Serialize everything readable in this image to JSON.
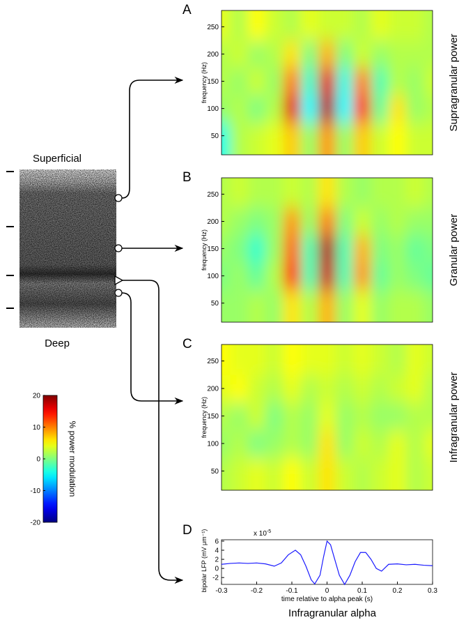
{
  "figure": {
    "superficial": "Superficial",
    "deep": "Deep",
    "bottom_label": "Infragranular alpha"
  },
  "colorbar": {
    "label": "% power modulation",
    "colormap": "jet",
    "clim": [
      -20,
      20
    ],
    "ticks": [
      20,
      10,
      0,
      -10,
      -20
    ]
  },
  "chart_data": [
    {
      "type": "heatmap",
      "panel": "A",
      "side_title": "Supragranular power",
      "ylabel": "frequency (Hz)",
      "x": [
        -0.3,
        -0.25,
        -0.2,
        -0.15,
        -0.1,
        -0.05,
        0,
        0.05,
        0.1,
        0.15,
        0.2,
        0.25,
        0.3
      ],
      "y": [
        50,
        100,
        150,
        200,
        250
      ],
      "xlim": [
        -0.3,
        0.3
      ],
      "ylim": [
        15,
        280
      ],
      "yticks": [
        50,
        100,
        150,
        200,
        250
      ],
      "z": [
        [
          -4,
          2,
          3,
          4,
          7,
          1,
          9,
          1,
          7,
          3,
          5,
          3,
          3
        ],
        [
          1,
          2,
          0,
          2,
          16,
          -5,
          18,
          -5,
          14,
          -1,
          6,
          1,
          2
        ],
        [
          2,
          1,
          3,
          1,
          10,
          -3,
          16,
          -4,
          10,
          -2,
          2,
          1,
          3
        ],
        [
          2,
          3,
          1,
          2,
          6,
          0,
          8,
          0,
          3,
          1,
          2,
          2,
          2
        ],
        [
          4,
          2,
          5,
          3,
          2,
          4,
          3,
          3,
          2,
          4,
          3,
          3,
          2
        ]
      ]
    },
    {
      "type": "heatmap",
      "panel": "B",
      "side_title": "Granular power",
      "ylabel": "frequency (Hz)",
      "x": [
        -0.3,
        -0.25,
        -0.2,
        -0.15,
        -0.1,
        -0.05,
        0,
        0.05,
        0.1,
        0.15,
        0.2,
        0.25,
        0.3
      ],
      "y": [
        50,
        100,
        150,
        200,
        250
      ],
      "xlim": [
        -0.3,
        0.3
      ],
      "ylim": [
        15,
        280
      ],
      "yticks": [
        50,
        100,
        150,
        200,
        250
      ],
      "z": [
        [
          1,
          1,
          2,
          1,
          6,
          2,
          8,
          1,
          4,
          1,
          2,
          2,
          1
        ],
        [
          0,
          1,
          -1,
          2,
          13,
          -2,
          17,
          -2,
          9,
          -1,
          1,
          0,
          -1
        ],
        [
          1,
          0,
          -3,
          1,
          11,
          -2,
          18,
          -2,
          8,
          0,
          1,
          -1,
          0
        ],
        [
          2,
          1,
          0,
          1,
          9,
          1,
          10,
          0,
          3,
          1,
          2,
          1,
          1
        ],
        [
          2,
          3,
          2,
          2,
          3,
          2,
          6,
          2,
          1,
          2,
          2,
          3,
          2
        ]
      ]
    },
    {
      "type": "heatmap",
      "panel": "C",
      "side_title": "Infragranular power",
      "ylabel": "frequency (Hz)",
      "x": [
        -0.3,
        -0.25,
        -0.2,
        -0.15,
        -0.1,
        -0.05,
        0,
        0.05,
        0.1,
        0.15,
        0.2,
        0.25,
        0.3
      ],
      "y": [
        50,
        100,
        150,
        200,
        250
      ],
      "xlim": [
        -0.3,
        0.3
      ],
      "ylim": [
        15,
        280
      ],
      "yticks": [
        50,
        100,
        150,
        200,
        250
      ],
      "z": [
        [
          2,
          3,
          4,
          3,
          5,
          3,
          6,
          3,
          2,
          3,
          4,
          2,
          3
        ],
        [
          1,
          2,
          0,
          1,
          2,
          1,
          6,
          1,
          3,
          2,
          4,
          2,
          4
        ],
        [
          2,
          1,
          3,
          0,
          2,
          1,
          4,
          1,
          2,
          1,
          1,
          2,
          2
        ],
        [
          4,
          5,
          3,
          2,
          4,
          2,
          3,
          2,
          3,
          2,
          3,
          4,
          2
        ],
        [
          5,
          4,
          4,
          3,
          5,
          4,
          4,
          3,
          4,
          3,
          2,
          4,
          3
        ]
      ]
    },
    {
      "type": "line",
      "panel": "D",
      "xlabel": "time relative to alpha peak (s)",
      "ylabel": "bipolar LFP (mV μm⁻¹)",
      "y_multiplier": {
        "base": "x 10",
        "exponent": "-5"
      },
      "x": [
        -0.3,
        -0.275,
        -0.25,
        -0.225,
        -0.2,
        -0.175,
        -0.15,
        -0.13,
        -0.11,
        -0.09,
        -0.075,
        -0.06,
        -0.045,
        -0.035,
        -0.02,
        -0.01,
        0,
        0.01,
        0.02,
        0.035,
        0.05,
        0.065,
        0.08,
        0.095,
        0.11,
        0.125,
        0.14,
        0.155,
        0.175,
        0.2,
        0.225,
        0.25,
        0.275,
        0.3
      ],
      "values": [
        0.9,
        1.1,
        1.2,
        1.1,
        1.2,
        1.0,
        0.5,
        1.2,
        3.0,
        4.0,
        3.0,
        0.5,
        -2.5,
        -3.4,
        -1.5,
        2.5,
        6.0,
        5.2,
        2.5,
        -1.5,
        -3.5,
        -1.5,
        1.5,
        3.5,
        3.5,
        2.0,
        0.0,
        -0.6,
        0.9,
        1.0,
        0.8,
        0.9,
        0.7,
        0.6
      ],
      "color": "#1a1aff",
      "xlim": [
        -0.3,
        0.3
      ],
      "ylim": [
        -3.5,
        6.3
      ],
      "xticks": [
        -0.3,
        -0.2,
        -0.1,
        0,
        0.1,
        0.2,
        0.3
      ],
      "yticks": [
        -2,
        0,
        2,
        4,
        6
      ]
    }
  ]
}
